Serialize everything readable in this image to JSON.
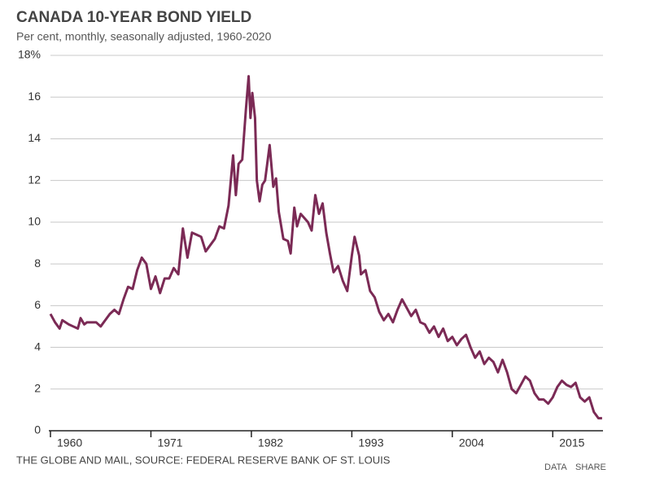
{
  "chart_data": {
    "type": "line",
    "title": "CANADA 10-YEAR BOND YIELD",
    "subtitle": "Per cent, monthly, seasonally adjusted, 1960-2020",
    "source": "THE GLOBE AND MAIL, SOURCE: FEDERAL RESERVE BANK OF ST. LOUIS",
    "buttons": [
      "DATA",
      "SHARE"
    ],
    "color": "#7b2a55",
    "grid": true,
    "xlim": [
      1960,
      2020.5
    ],
    "xticks": [
      1960,
      1971,
      1982,
      1993,
      2004,
      2015
    ],
    "ylim": [
      0,
      18
    ],
    "yticks": [
      0,
      2,
      4,
      6,
      8,
      10,
      12,
      14,
      16,
      {
        "value": 18,
        "label": "18%"
      }
    ],
    "x": [
      1960,
      1960.5,
      1961,
      1961.3,
      1962,
      1962.5,
      1963,
      1963.3,
      1963.7,
      1964,
      1965,
      1965.5,
      1966,
      1966.5,
      1967,
      1967.5,
      1968,
      1968.5,
      1969,
      1969.5,
      1970,
      1970.5,
      1971,
      1971.5,
      1972,
      1972.5,
      1973,
      1973.5,
      1974,
      1974.5,
      1975,
      1975.5,
      1976,
      1976.5,
      1977,
      1977.5,
      1978,
      1978.5,
      1979,
      1979.5,
      1980,
      1980.3,
      1980.6,
      1981,
      1981.4,
      1981.7,
      1981.9,
      1982.1,
      1982.4,
      1982.6,
      1982.9,
      1983.2,
      1983.5,
      1984,
      1984.4,
      1984.7,
      1985,
      1985.5,
      1986,
      1986.3,
      1986.7,
      1987,
      1987.4,
      1987.8,
      1988.2,
      1988.6,
      1989,
      1989.4,
      1989.8,
      1990.2,
      1990.6,
      1991,
      1991.5,
      1992,
      1992.5,
      1993,
      1993.3,
      1993.8,
      1994,
      1994.5,
      1995,
      1995.5,
      1996,
      1996.5,
      1997,
      1997.5,
      1998,
      1998.5,
      1999,
      1999.5,
      2000,
      2000.5,
      2001,
      2001.5,
      2002,
      2002.5,
      2003,
      2003.5,
      2004,
      2004.5,
      2005,
      2005.5,
      2006,
      2006.5,
      2007,
      2007.5,
      2008,
      2008.5,
      2009,
      2009.5,
      2010,
      2010.5,
      2011,
      2011.5,
      2012,
      2012.5,
      2013,
      2013.5,
      2014,
      2014.5,
      2015,
      2015.5,
      2016,
      2016.5,
      2017,
      2017.5,
      2018,
      2018.5,
      2019,
      2019.5,
      2020,
      2020.4
    ],
    "values": [
      5.6,
      5.2,
      4.9,
      5.3,
      5.1,
      5.0,
      4.9,
      5.4,
      5.1,
      5.2,
      5.2,
      5.0,
      5.3,
      5.6,
      5.8,
      5.6,
      6.3,
      6.9,
      6.8,
      7.7,
      8.3,
      8.0,
      6.8,
      7.4,
      6.6,
      7.3,
      7.3,
      7.8,
      7.5,
      9.7,
      8.3,
      9.5,
      9.4,
      9.3,
      8.6,
      8.9,
      9.2,
      9.8,
      9.7,
      10.8,
      13.2,
      11.3,
      12.8,
      13.0,
      15.4,
      17.0,
      15.0,
      16.2,
      15.0,
      12.0,
      11.0,
      11.8,
      12.0,
      13.7,
      11.7,
      12.1,
      10.5,
      9.2,
      9.1,
      8.5,
      10.7,
      9.8,
      10.4,
      10.2,
      10.0,
      9.6,
      11.3,
      10.4,
      10.9,
      9.5,
      8.5,
      7.6,
      7.9,
      7.2,
      6.7,
      8.4,
      9.3,
      8.4,
      7.5,
      7.7,
      6.7,
      6.4,
      5.7,
      5.3,
      5.6,
      5.2,
      5.8,
      6.3,
      5.9,
      5.5,
      5.8,
      5.2,
      5.1,
      4.7,
      5.0,
      4.5,
      4.9,
      4.3,
      4.5,
      4.1,
      4.4,
      4.6,
      4.0,
      3.5,
      3.8,
      3.2,
      3.5,
      3.3,
      2.8,
      3.4,
      2.8,
      2.0,
      1.8,
      2.2,
      2.6,
      2.4,
      1.8,
      1.5,
      1.5,
      1.3,
      1.6,
      2.1,
      2.4,
      2.2,
      2.1,
      2.3,
      1.6,
      1.4,
      1.6,
      0.9,
      0.6,
      0.6
    ]
  }
}
